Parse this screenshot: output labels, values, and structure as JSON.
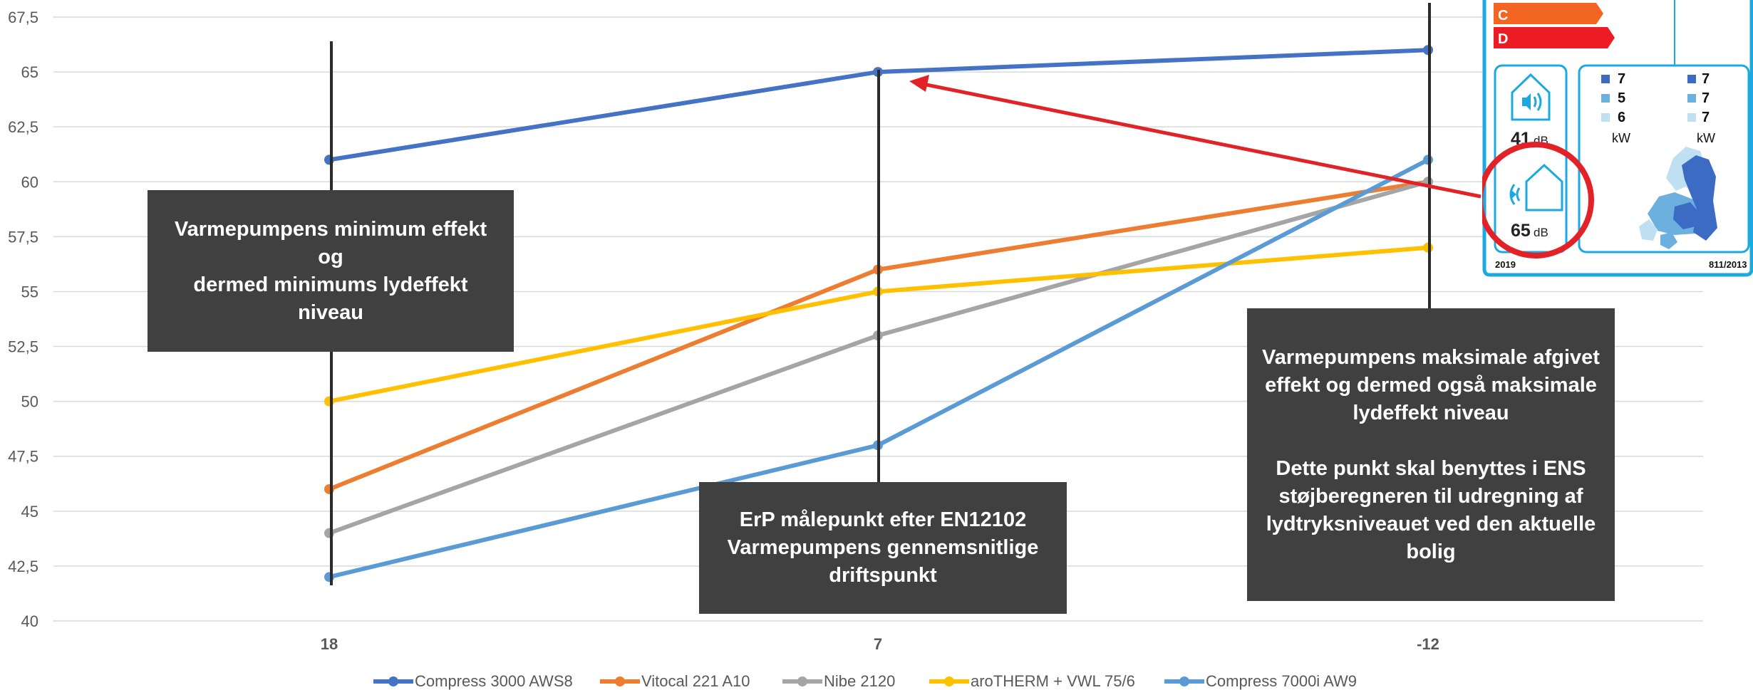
{
  "chart_data": {
    "type": "line",
    "categories": [
      "18",
      "7",
      "-12"
    ],
    "ylim": [
      40,
      67.5
    ],
    "yticks": [
      "40",
      "42,5",
      "45",
      "47,5",
      "50",
      "52,5",
      "55",
      "57,5",
      "60",
      "62,5",
      "65",
      "67,5"
    ],
    "grid": true,
    "legend_position": "bottom",
    "series": [
      {
        "name": "Compress 3000 AWS8",
        "values": [
          61,
          65,
          66
        ],
        "color": "#4472C4"
      },
      {
        "name": "Vitocal 221 A10",
        "values": [
          46,
          56,
          60
        ],
        "color": "#ED7D31"
      },
      {
        "name": "Nibe 2120",
        "values": [
          44,
          53,
          60
        ],
        "color": "#A5A5A5"
      },
      {
        "name": "aroTHERM + VWL 75/6",
        "values": [
          50,
          55,
          57
        ],
        "color": "#FFC000"
      },
      {
        "name": "Compress 7000i AW9",
        "values": [
          42,
          48,
          61
        ],
        "color": "#5B9BD5"
      }
    ],
    "annotations": [
      {
        "id": "min",
        "text": "Varmepumpens minimum effekt og\ndermed minimums lydeffekt niveau"
      },
      {
        "id": "erp",
        "text": "ErP målepunkt efter EN12102\nVarmepumpens gennemsnitlige\ndriftspunkt"
      },
      {
        "id": "max",
        "text": "Varmepumpens maksimale afgivet\neffekt og dermed også maksimale\nlydeffekt niveau\n\nDette punkt skal benyttes i ENS\nstøjberegneren til udregning af\nlydtryksniveauet ved den aktuelle\nbolig"
      }
    ]
  },
  "energy_label": {
    "class_c": "C",
    "class_d": "D",
    "indoor_db": "41",
    "outdoor_db": "65",
    "db_unit": "dB",
    "col1": [
      "7",
      "5",
      "6"
    ],
    "col2": [
      "7",
      "7",
      "7"
    ],
    "kw_unit": "kW",
    "year": "2019",
    "regulation": "811/2013",
    "colors": {
      "c": "#F26522",
      "d": "#ED1C24",
      "frame": "#1BA9E0",
      "dark": "#3B6BC2",
      "mid": "#6CB0E0",
      "light": "#BFE0F3",
      "circle": "#E32228"
    }
  }
}
